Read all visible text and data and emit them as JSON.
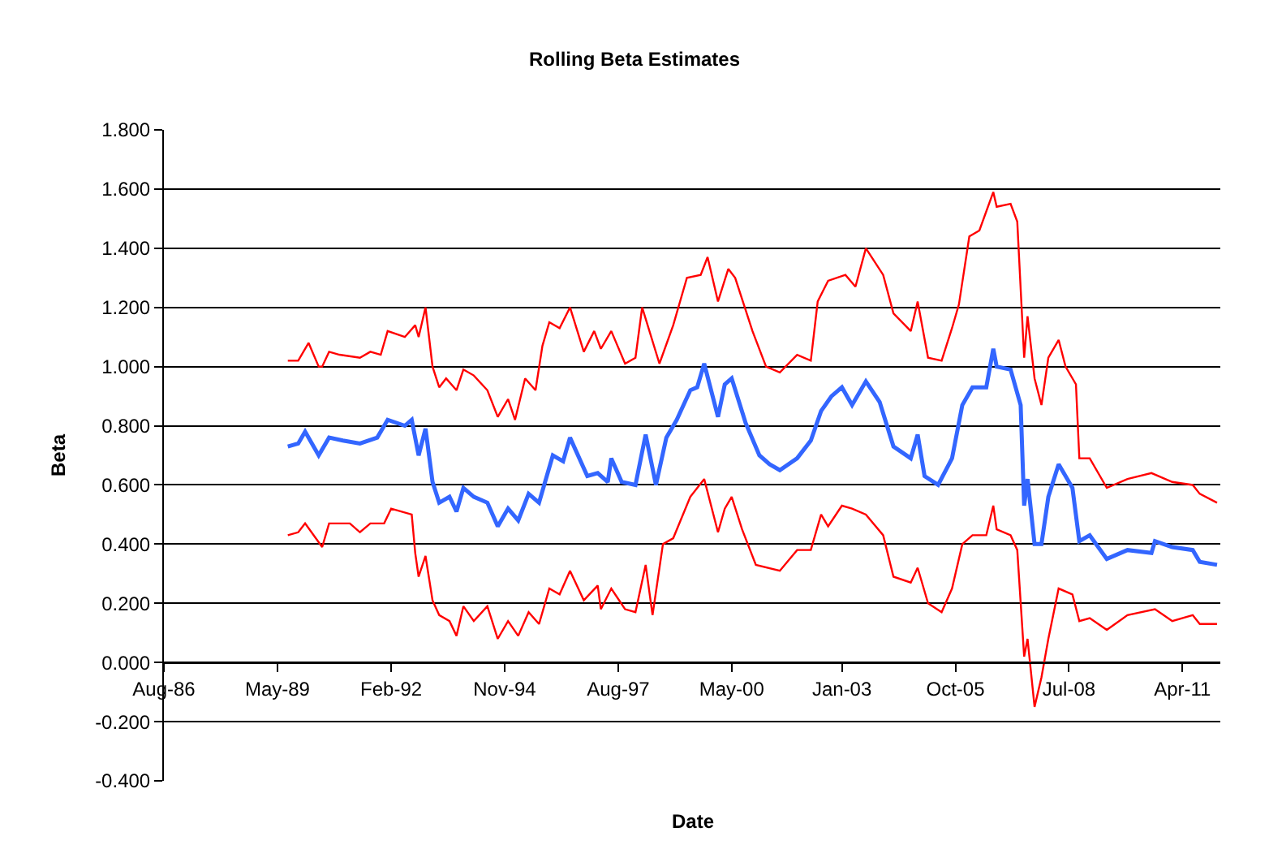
{
  "chart_data": {
    "type": "line",
    "title": "Rolling Beta Estimates",
    "xlabel": "Date",
    "ylabel": "Beta",
    "xlim": [
      "1986-08",
      "2012-03"
    ],
    "xticks": [
      {
        "value": "1986-08",
        "label": "Aug-86"
      },
      {
        "value": "1989-05",
        "label": "May-89"
      },
      {
        "value": "1992-02",
        "label": "Feb-92"
      },
      {
        "value": "1994-11",
        "label": "Nov-94"
      },
      {
        "value": "1997-08",
        "label": "Aug-97"
      },
      {
        "value": "2000-05",
        "label": "May-00"
      },
      {
        "value": "2003-01",
        "label": "Jan-03"
      },
      {
        "value": "2005-10",
        "label": "Oct-05"
      },
      {
        "value": "2008-07",
        "label": "Jul-08"
      },
      {
        "value": "2011-04",
        "label": "Apr-11"
      }
    ],
    "ylim": [
      -0.4,
      1.8
    ],
    "yticks": [
      {
        "value": -0.4,
        "label": "-0.400"
      },
      {
        "value": -0.2,
        "label": "-0.200"
      },
      {
        "value": 0,
        "label": "0.000"
      },
      {
        "value": 0.2,
        "label": "0.200"
      },
      {
        "value": 0.4,
        "label": "0.400"
      },
      {
        "value": 0.6,
        "label": "0.600"
      },
      {
        "value": 0.8,
        "label": "0.800"
      },
      {
        "value": 1.0,
        "label": "1.000"
      },
      {
        "value": 1.2,
        "label": "1.200"
      },
      {
        "value": 1.4,
        "label": "1.400"
      },
      {
        "value": 1.6,
        "label": "1.600"
      },
      {
        "value": 1.8,
        "label": "1.800"
      }
    ],
    "grid": "y",
    "marker": "none",
    "line_style": "solid",
    "series": [
      {
        "color": "#ff0000",
        "x": [
          "1989-08",
          "1989-11",
          "1990-02",
          "1990-05",
          "1990-06",
          "1990-08",
          "1990-11",
          "1991-05",
          "1991-08",
          "1991-11",
          "1992-01",
          "1992-06",
          "1992-09",
          "1992-10",
          "1992-12",
          "1993-02",
          "1993-04",
          "1993-06",
          "1993-09",
          "1993-11",
          "1994-02",
          "1994-06",
          "1994-09",
          "1994-12",
          "1995-02",
          "1995-05",
          "1995-08",
          "1995-10",
          "1995-12",
          "1996-03",
          "1996-06",
          "1996-10",
          "1997-01",
          "1997-03",
          "1997-06",
          "1997-10",
          "1998-01",
          "1998-03",
          "1998-08",
          "1998-12",
          "1999-04",
          "1999-08",
          "1999-10",
          "2000-01",
          "2000-04",
          "2000-06",
          "2000-11",
          "2001-03",
          "2001-07",
          "2001-12",
          "2002-04",
          "2002-06",
          "2002-09",
          "2003-02",
          "2003-05",
          "2003-08",
          "2004-01",
          "2004-04",
          "2004-09",
          "2004-11",
          "2005-02",
          "2005-06",
          "2005-09",
          "2005-11",
          "2006-02",
          "2006-05",
          "2006-09",
          "2006-10",
          "2007-02",
          "2007-04",
          "2007-06",
          "2007-07",
          "2007-09",
          "2007-11",
          "2008-01",
          "2008-04",
          "2008-06",
          "2008-09",
          "2008-10",
          "2009-01",
          "2009-06",
          "2009-12",
          "2010-07",
          "2011-01",
          "2011-07",
          "2011-09",
          "2012-02"
        ],
        "values": [
          1.02,
          1.02,
          1.08,
          1.0,
          1.0,
          1.05,
          1.04,
          1.03,
          1.05,
          1.04,
          1.12,
          1.1,
          1.14,
          1.1,
          1.2,
          1.0,
          0.93,
          0.96,
          0.92,
          0.99,
          0.97,
          0.92,
          0.83,
          0.89,
          0.82,
          0.96,
          0.92,
          1.07,
          1.15,
          1.13,
          1.2,
          1.05,
          1.12,
          1.06,
          1.12,
          1.01,
          1.03,
          1.2,
          1.01,
          1.14,
          1.3,
          1.31,
          1.37,
          1.22,
          1.33,
          1.3,
          1.12,
          1.0,
          0.98,
          1.04,
          1.02,
          1.22,
          1.29,
          1.31,
          1.27,
          1.4,
          1.31,
          1.18,
          1.12,
          1.22,
          1.03,
          1.02,
          1.13,
          1.21,
          1.44,
          1.46,
          1.59,
          1.54,
          1.55,
          1.49,
          1.03,
          1.17,
          0.96,
          0.87,
          1.03,
          1.09,
          1.0,
          0.94,
          0.69,
          0.69,
          0.59,
          0.62,
          0.64,
          0.61,
          0.6,
          0.57,
          0.54
        ]
      },
      {
        "color": "#3366ff",
        "x": [
          "1989-08",
          "1989-11",
          "1990-01",
          "1990-05",
          "1990-08",
          "1990-12",
          "1991-05",
          "1991-10",
          "1992-01",
          "1992-06",
          "1992-08",
          "1992-10",
          "1992-12",
          "1993-02",
          "1993-04",
          "1993-07",
          "1993-09",
          "1993-11",
          "1994-02",
          "1994-06",
          "1994-09",
          "1994-12",
          "1995-03",
          "1995-06",
          "1995-09",
          "1996-01",
          "1996-04",
          "1996-06",
          "1996-11",
          "1997-02",
          "1997-05",
          "1997-06",
          "1997-09",
          "1998-01",
          "1998-04",
          "1998-07",
          "1998-10",
          "1999-01",
          "1999-05",
          "1999-07",
          "1999-09",
          "2000-01",
          "2000-03",
          "2000-05",
          "2000-09",
          "2001-01",
          "2001-04",
          "2001-07",
          "2001-12",
          "2002-04",
          "2002-07",
          "2002-10",
          "2003-01",
          "2003-04",
          "2003-08",
          "2003-12",
          "2004-04",
          "2004-09",
          "2004-11",
          "2005-01",
          "2005-05",
          "2005-09",
          "2005-12",
          "2006-03",
          "2006-07",
          "2006-09",
          "2006-10",
          "2007-02",
          "2007-05",
          "2007-06",
          "2007-07",
          "2007-09",
          "2007-11",
          "2008-01",
          "2008-04",
          "2008-08",
          "2008-10",
          "2009-01",
          "2009-06",
          "2009-12",
          "2010-07",
          "2010-08",
          "2011-01",
          "2011-07",
          "2011-09",
          "2012-02"
        ],
        "values": [
          0.73,
          0.74,
          0.78,
          0.7,
          0.76,
          0.75,
          0.74,
          0.76,
          0.82,
          0.8,
          0.82,
          0.7,
          0.79,
          0.61,
          0.54,
          0.56,
          0.51,
          0.59,
          0.56,
          0.54,
          0.46,
          0.52,
          0.48,
          0.57,
          0.54,
          0.7,
          0.68,
          0.76,
          0.63,
          0.64,
          0.61,
          0.69,
          0.61,
          0.6,
          0.77,
          0.6,
          0.76,
          0.82,
          0.92,
          0.93,
          1.01,
          0.83,
          0.94,
          0.96,
          0.81,
          0.7,
          0.67,
          0.65,
          0.69,
          0.75,
          0.85,
          0.9,
          0.93,
          0.87,
          0.95,
          0.88,
          0.73,
          0.69,
          0.77,
          0.63,
          0.6,
          0.69,
          0.87,
          0.93,
          0.93,
          1.06,
          1.0,
          0.99,
          0.87,
          0.53,
          0.62,
          0.4,
          0.4,
          0.56,
          0.67,
          0.59,
          0.41,
          0.43,
          0.35,
          0.38,
          0.37,
          0.41,
          0.39,
          0.38,
          0.34,
          0.33
        ]
      },
      {
        "color": "#ff0000",
        "x": [
          "1989-08",
          "1989-11",
          "1990-01",
          "1990-06",
          "1990-08",
          "1991-02",
          "1991-05",
          "1991-08",
          "1991-12",
          "1992-02",
          "1992-08",
          "1992-09",
          "1992-10",
          "1992-12",
          "1993-02",
          "1993-04",
          "1993-07",
          "1993-09",
          "1993-11",
          "1994-02",
          "1994-06",
          "1994-09",
          "1994-12",
          "1995-03",
          "1995-06",
          "1995-09",
          "1995-12",
          "1996-03",
          "1996-06",
          "1996-10",
          "1997-02",
          "1997-03",
          "1997-06",
          "1997-10",
          "1998-01",
          "1998-04",
          "1998-06",
          "1998-09",
          "1998-12",
          "1999-05",
          "1999-09",
          "2000-01",
          "2000-03",
          "2000-05",
          "2000-08",
          "2000-12",
          "2001-07",
          "2001-12",
          "2002-04",
          "2002-07",
          "2002-09",
          "2003-01",
          "2003-04",
          "2003-08",
          "2004-01",
          "2004-04",
          "2004-09",
          "2004-11",
          "2005-02",
          "2005-06",
          "2005-09",
          "2005-12",
          "2006-03",
          "2006-07",
          "2006-09",
          "2006-10",
          "2007-02",
          "2007-04",
          "2007-06",
          "2007-07",
          "2007-09",
          "2007-11",
          "2008-01",
          "2008-04",
          "2008-08",
          "2008-10",
          "2009-01",
          "2009-06",
          "2009-12",
          "2010-08",
          "2011-01",
          "2011-07",
          "2011-09",
          "2012-02"
        ],
        "values": [
          0.43,
          0.44,
          0.47,
          0.39,
          0.47,
          0.47,
          0.44,
          0.47,
          0.47,
          0.52,
          0.5,
          0.37,
          0.29,
          0.36,
          0.21,
          0.16,
          0.14,
          0.09,
          0.19,
          0.14,
          0.19,
          0.08,
          0.14,
          0.09,
          0.17,
          0.13,
          0.25,
          0.23,
          0.31,
          0.21,
          0.26,
          0.18,
          0.25,
          0.18,
          0.17,
          0.33,
          0.16,
          0.4,
          0.42,
          0.56,
          0.62,
          0.44,
          0.52,
          0.56,
          0.45,
          0.33,
          0.31,
          0.38,
          0.38,
          0.5,
          0.46,
          0.53,
          0.52,
          0.5,
          0.43,
          0.29,
          0.27,
          0.32,
          0.2,
          0.17,
          0.25,
          0.4,
          0.43,
          0.43,
          0.53,
          0.45,
          0.43,
          0.38,
          0.02,
          0.08,
          -0.15,
          -0.05,
          0.08,
          0.25,
          0.23,
          0.14,
          0.15,
          0.11,
          0.16,
          0.18,
          0.14,
          0.16,
          0.13,
          0.13
        ]
      }
    ]
  }
}
